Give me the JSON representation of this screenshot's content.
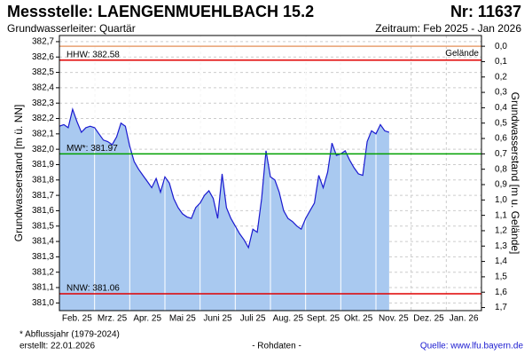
{
  "chart_data": {
    "type": "area",
    "title": "Messstelle: LAENGENMUEHLBACH 15.2",
    "number": "Nr: 11637",
    "subtitle": "Grundwasserleiter: Quartär",
    "period": "Zeitraum: Feb 2025 - Jan 2026",
    "ylabel": "Grundwasserstand [m ü. NN]",
    "y2label": "Grundwasserstand [m u. Gelände]",
    "footnote": "* Abflussjahr (1979-2024)",
    "created": "erstellt:  22.01.2026",
    "status": "- Rohdaten -",
    "source": "Quelle: www.lfu.bayern.de",
    "categories": [
      "Feb. 25",
      "Mrz. 25",
      "Apr. 25",
      "Mai 25",
      "Juni 25",
      "Juli 25",
      "Aug. 25",
      "Sept. 25",
      "Okt. 25",
      "Nov. 25",
      "Dez. 25",
      "Jan. 26"
    ],
    "values": [
      [
        382.15,
        382.16,
        382.14,
        382.26,
        382.18,
        382.11,
        382.14,
        382.15
      ],
      [
        382.14,
        382.1,
        382.06,
        382.05,
        382.03,
        382.08,
        382.17,
        382.15
      ],
      [
        382.02,
        381.92,
        381.87,
        381.83,
        381.79,
        381.75,
        381.81,
        381.72
      ],
      [
        381.82,
        381.78,
        381.68,
        381.62,
        381.58,
        381.56,
        381.55,
        381.62
      ],
      [
        381.65,
        381.7,
        381.73,
        381.68,
        381.55,
        381.84,
        381.62,
        381.55
      ],
      [
        381.5,
        381.45,
        381.41,
        381.36,
        381.48,
        381.46,
        381.68,
        381.99
      ],
      [
        381.82,
        381.8,
        381.72,
        381.6,
        381.55,
        381.53,
        381.5,
        381.48
      ],
      [
        381.55,
        381.6,
        381.65,
        381.83,
        381.75,
        381.85,
        382.04,
        381.96
      ],
      [
        381.97,
        381.99,
        381.93,
        381.88,
        381.84,
        381.83,
        382.05,
        382.12
      ],
      [
        382.1,
        382.16,
        382.12,
        382.11
      ],
      [],
      []
    ],
    "line_color": "#1a1ad0",
    "fill_color": "#a9c9f0",
    "ylim": [
      380.95,
      382.74
    ],
    "yticks": [
      {
        "value": 381.0,
        "label": "381,0"
      },
      {
        "value": 381.1,
        "label": "381,1"
      },
      {
        "value": 381.2,
        "label": "381,2"
      },
      {
        "value": 381.3,
        "label": "381,3"
      },
      {
        "value": 381.4,
        "label": "381,4"
      },
      {
        "value": 381.5,
        "label": "381,5"
      },
      {
        "value": 381.6,
        "label": "381,6"
      },
      {
        "value": 381.7,
        "label": "381,7"
      },
      {
        "value": 381.8,
        "label": "381,8"
      },
      {
        "value": 381.9,
        "label": "381,9"
      },
      {
        "value": 382.0,
        "label": "382,0"
      },
      {
        "value": 382.1,
        "label": "382,1"
      },
      {
        "value": 382.2,
        "label": "382,2"
      },
      {
        "value": 382.3,
        "label": "382,3"
      },
      {
        "value": 382.4,
        "label": "382,4"
      },
      {
        "value": 382.5,
        "label": "382,5"
      },
      {
        "value": 382.6,
        "label": "382,6"
      },
      {
        "value": 382.7,
        "label": "382,7"
      }
    ],
    "y2lim": [
      1.72,
      -0.07
    ],
    "y2ticks": [
      {
        "value": 0.0,
        "label": "0,0"
      },
      {
        "value": 0.1,
        "label": "0,1"
      },
      {
        "value": 0.2,
        "label": "0,2"
      },
      {
        "value": 0.3,
        "label": "0,3"
      },
      {
        "value": 0.4,
        "label": "0,4"
      },
      {
        "value": 0.5,
        "label": "0,5"
      },
      {
        "value": 0.6,
        "label": "0,6"
      },
      {
        "value": 0.7,
        "label": "0,7"
      },
      {
        "value": 0.8,
        "label": "0,8"
      },
      {
        "value": 0.9,
        "label": "0,9"
      },
      {
        "value": 1.0,
        "label": "1,0"
      },
      {
        "value": 1.1,
        "label": "1,1"
      },
      {
        "value": 1.2,
        "label": "1,2"
      },
      {
        "value": 1.3,
        "label": "1,3"
      },
      {
        "value": 1.4,
        "label": "1,4"
      },
      {
        "value": 1.5,
        "label": "1,5"
      },
      {
        "value": 1.6,
        "label": "1,6"
      },
      {
        "value": 1.7,
        "label": "1,7"
      }
    ],
    "grid": true,
    "reference_lines": [
      {
        "name": "Gelände",
        "value": 382.67,
        "color": "#e8a070",
        "label_side": "right"
      },
      {
        "name": {
          "value": 382.58,
          "label": "HHW: 382.58"
        },
        "value": 382.58,
        "color": "#e00000",
        "label_side": "left"
      },
      {
        "name": {
          "value": 381.97,
          "label": "MW*: 381.97"
        },
        "value": 381.97,
        "color": "#00a000",
        "label_side": "left"
      },
      {
        "name": {
          "value": 381.06,
          "label": "NNW: 381.06"
        },
        "value": 381.06,
        "color": "#e00000",
        "label_side": "left"
      }
    ]
  }
}
